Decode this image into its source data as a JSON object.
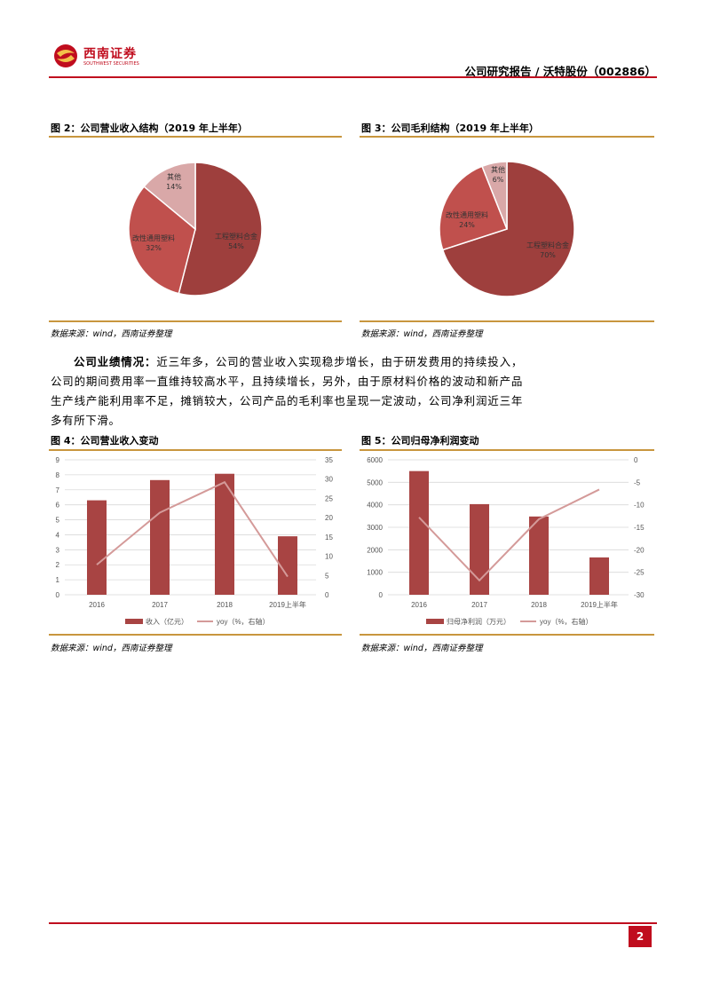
{
  "header": {
    "logo_text_cn": "西南证券",
    "logo_text_en": "SOUTHWEST SECURITIES",
    "report_title": "公司研究报告 / 沃特股份（002886）"
  },
  "figures": {
    "fig2": {
      "title": "图 2：公司营业收入结构（2019 年上半年）",
      "source": "数据来源：wind，西南证券整理"
    },
    "fig3": {
      "title": "图 3：公司毛利结构（2019 年上半年）",
      "source": "数据来源：wind，西南证券整理"
    },
    "fig4": {
      "title": "图 4：公司营业收入变动",
      "source": "数据来源：wind，西南证券整理"
    },
    "fig5": {
      "title": "图 5：公司归母净利润变动",
      "source": "数据来源：wind，西南证券整理"
    }
  },
  "paragraph": {
    "lead": "公司业绩情况：",
    "body": "近三年多，公司的营业收入实现稳步增长，由于研发费用的持续投入，公司的期间费用率一直维持较高水平，且持续增长，另外，由于原材料价格的波动和新产品生产线产能利用率不足，摊销较大，公司产品的毛利率也呈现一定波动，公司净利润近三年多有所下滑。"
  },
  "colors": {
    "brand_red": "#c00d1e",
    "gold": "#c8963e",
    "bar": "#a84443",
    "line": "#d49a99",
    "pie": [
      "#9e3f3d",
      "#c0504d",
      "#d9a8a8"
    ]
  },
  "chart_data": [
    {
      "type": "pie",
      "labels": [
        "工程塑料合金",
        "改性通用塑料",
        "其他"
      ],
      "values": [
        54,
        32,
        14
      ],
      "value_labels": [
        "54%",
        "32%",
        "14%"
      ]
    },
    {
      "type": "pie",
      "labels": [
        "工程塑料合金",
        "改性通用塑料",
        "其他"
      ],
      "values": [
        70,
        24,
        6
      ],
      "value_labels": [
        "70%",
        "24%",
        "6%"
      ]
    },
    {
      "type": "bar+line",
      "categories": [
        "2016",
        "2017",
        "2018",
        "2019上半年"
      ],
      "series": [
        {
          "name": "收入（亿元）",
          "type": "bar",
          "axis": "left",
          "values": [
            6.3,
            7.65,
            8.07,
            3.9
          ]
        },
        {
          "name": "yoy（%，右轴）",
          "type": "line",
          "axis": "right",
          "values": [
            7.8,
            21.3,
            29.2,
            4.7
          ]
        }
      ],
      "ylim_left": [
        0,
        9
      ],
      "yticks_left": [
        "0",
        "1",
        "2",
        "3",
        "4",
        "5",
        "6",
        "7",
        "8",
        "9"
      ],
      "ylim_right": [
        0,
        35
      ],
      "yticks_right": [
        "0",
        "5",
        "10",
        "15",
        "20",
        "25",
        "30",
        "35"
      ],
      "grid": true,
      "legend": "bottom"
    },
    {
      "type": "bar+line",
      "categories": [
        "2016",
        "2017",
        "2018",
        "2019上半年"
      ],
      "series": [
        {
          "name": "归母净利润（万元）",
          "type": "bar",
          "axis": "left",
          "values": [
            5500,
            4030,
            3480,
            1660
          ]
        },
        {
          "name": "yoy（%，右轴）",
          "type": "line",
          "axis": "right",
          "values": [
            -12.8,
            -26.8,
            -13.2,
            -6.6
          ]
        }
      ],
      "ylim_left": [
        0,
        6000
      ],
      "yticks_left": [
        "0",
        "1000",
        "2000",
        "3000",
        "4000",
        "5000",
        "6000"
      ],
      "ylim_right": [
        -30,
        0
      ],
      "yticks_right": [
        "-30",
        "-25",
        "-20",
        "-15",
        "-10",
        "-5",
        "0"
      ],
      "grid": true,
      "legend": "bottom"
    }
  ],
  "footer": {
    "page_number": "2"
  }
}
